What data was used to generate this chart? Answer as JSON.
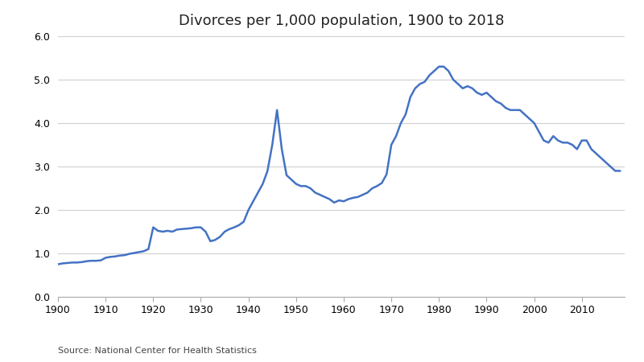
{
  "title": "Divorces per 1,000 population, 1900 to 2018",
  "source": "Source: National Center for Health Statistics",
  "line_color": "#4472C4",
  "background_color": "#ffffff",
  "ylim": [
    0.0,
    6.0
  ],
  "yticks": [
    0.0,
    1.0,
    2.0,
    3.0,
    4.0,
    5.0,
    6.0
  ],
  "xticks": [
    1900,
    1910,
    1920,
    1930,
    1940,
    1950,
    1960,
    1970,
    1980,
    1990,
    2000,
    2010
  ],
  "years": [
    1900,
    1901,
    1902,
    1903,
    1904,
    1905,
    1906,
    1907,
    1908,
    1909,
    1910,
    1911,
    1912,
    1913,
    1914,
    1915,
    1916,
    1917,
    1918,
    1919,
    1920,
    1921,
    1922,
    1923,
    1924,
    1925,
    1926,
    1927,
    1928,
    1929,
    1930,
    1931,
    1932,
    1933,
    1934,
    1935,
    1936,
    1937,
    1938,
    1939,
    1940,
    1941,
    1942,
    1943,
    1944,
    1945,
    1946,
    1947,
    1948,
    1949,
    1950,
    1951,
    1952,
    1953,
    1954,
    1955,
    1956,
    1957,
    1958,
    1959,
    1960,
    1961,
    1962,
    1963,
    1964,
    1965,
    1966,
    1967,
    1968,
    1969,
    1970,
    1971,
    1972,
    1973,
    1974,
    1975,
    1976,
    1977,
    1978,
    1979,
    1980,
    1981,
    1982,
    1983,
    1984,
    1985,
    1986,
    1987,
    1988,
    1989,
    1990,
    1991,
    1992,
    1993,
    1994,
    1995,
    1996,
    1997,
    1998,
    1999,
    2000,
    2001,
    2002,
    2003,
    2004,
    2005,
    2006,
    2007,
    2008,
    2009,
    2010,
    2011,
    2012,
    2013,
    2014,
    2015,
    2016,
    2017,
    2018
  ],
  "rates": [
    0.75,
    0.77,
    0.78,
    0.79,
    0.79,
    0.8,
    0.82,
    0.83,
    0.83,
    0.84,
    0.9,
    0.92,
    0.93,
    0.95,
    0.96,
    0.99,
    1.01,
    1.03,
    1.05,
    1.1,
    1.6,
    1.52,
    1.5,
    1.52,
    1.5,
    1.55,
    1.56,
    1.57,
    1.58,
    1.6,
    1.6,
    1.5,
    1.28,
    1.31,
    1.38,
    1.5,
    1.56,
    1.6,
    1.65,
    1.73,
    2.0,
    2.2,
    2.4,
    2.6,
    2.9,
    3.5,
    4.3,
    3.4,
    2.8,
    2.7,
    2.6,
    2.55,
    2.55,
    2.5,
    2.4,
    2.35,
    2.3,
    2.25,
    2.17,
    2.22,
    2.2,
    2.25,
    2.28,
    2.3,
    2.35,
    2.4,
    2.5,
    2.55,
    2.62,
    2.82,
    3.5,
    3.7,
    4.0,
    4.2,
    4.6,
    4.8,
    4.9,
    4.95,
    5.1,
    5.2,
    5.3,
    5.3,
    5.2,
    5.0,
    4.9,
    4.8,
    4.85,
    4.8,
    4.7,
    4.65,
    4.7,
    4.6,
    4.5,
    4.45,
    4.35,
    4.3,
    4.3,
    4.3,
    4.2,
    4.1,
    4.0,
    3.8,
    3.6,
    3.55,
    3.7,
    3.6,
    3.55,
    3.55,
    3.5,
    3.4,
    3.6,
    3.6,
    3.4,
    3.3,
    3.2,
    3.1,
    3.0,
    2.9,
    2.9
  ]
}
